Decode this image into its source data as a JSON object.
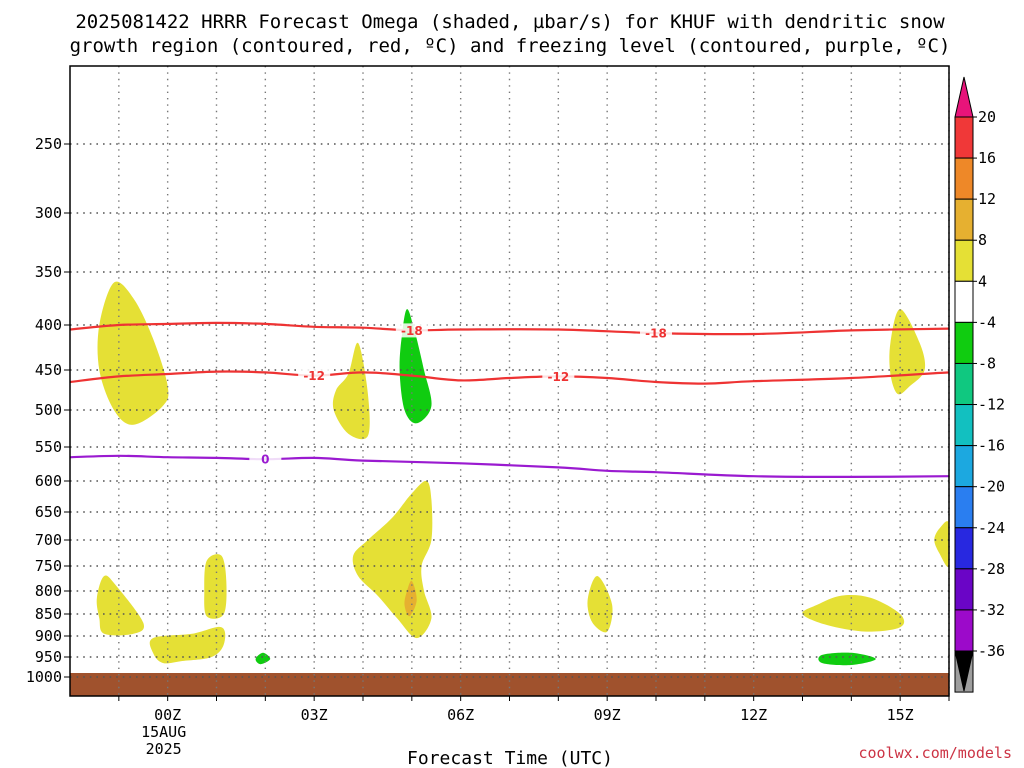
{
  "title_line1": "2025081422 HRRR Forecast Omega (shaded, µbar/s) for KHUF with dendritic snow",
  "title_line2": "growth region (contoured, red, ºC) and freezing level (contoured, purple, ºC)",
  "xlabel": "Forecast Time (UTC)",
  "credit": "coolwx.com/models",
  "chart_data": {
    "type": "contour",
    "title": "2025081422 HRRR Forecast Omega (shaded, µbar/s) for KHUF with dendritic snow growth region (contoured, red, ºC) and freezing level (contoured, purple, ºC)",
    "xlabel": "Forecast Time (UTC)",
    "ylabel": "",
    "x_range_hours": [
      -2.0,
      16.0
    ],
    "y_range_hpa": [
      200,
      1030
    ],
    "y_axis": "pressure (inverted, log-like spacing)",
    "grid": true,
    "x_ticks": [
      {
        "hour": 0,
        "label": "00Z",
        "sub1": "15AUG",
        "sub2": "2025"
      },
      {
        "hour": 3,
        "label": "03Z"
      },
      {
        "hour": 6,
        "label": "06Z"
      },
      {
        "hour": 9,
        "label": "09Z"
      },
      {
        "hour": 12,
        "label": "12Z"
      },
      {
        "hour": 15,
        "label": "15Z"
      }
    ],
    "y_ticks": [
      250,
      300,
      350,
      400,
      450,
      500,
      550,
      600,
      650,
      700,
      750,
      800,
      850,
      900,
      950,
      1000
    ],
    "surface_pressure_hpa": 990,
    "colorbar": {
      "levels": [
        -36,
        -32,
        -28,
        -24,
        -20,
        -16,
        -12,
        -8,
        -4,
        4,
        8,
        12,
        16,
        20
      ],
      "colors": [
        "#9e9e9e",
        "#9c0aca",
        "#6a05c6",
        "#2828e0",
        "#2a7ef0",
        "#1ca8e0",
        "#12c0c0",
        "#10c880",
        "#10cc10",
        "#ffffff",
        "#e5e035",
        "#e6b030",
        "#ee8828",
        "#f03838"
      ],
      "over_color": "#e8147a",
      "under_color": "#000000"
    },
    "contours": [
      {
        "variable": "temperature",
        "value": -18,
        "label": "-18",
        "color": "#ee3333",
        "points": [
          [
            -2,
            405
          ],
          [
            -1,
            400
          ],
          [
            0,
            399
          ],
          [
            1,
            398
          ],
          [
            2,
            399
          ],
          [
            3,
            402
          ],
          [
            4,
            403
          ],
          [
            5,
            406
          ],
          [
            6,
            405
          ],
          [
            8,
            405
          ],
          [
            10,
            409
          ],
          [
            12,
            410
          ],
          [
            14,
            406
          ],
          [
            16,
            404
          ]
        ]
      },
      {
        "variable": "temperature",
        "value": -12,
        "label": "-12",
        "color": "#ee3333",
        "points": [
          [
            -2,
            465
          ],
          [
            -1,
            458
          ],
          [
            0,
            455
          ],
          [
            1,
            452
          ],
          [
            2,
            453
          ],
          [
            3,
            457
          ],
          [
            4,
            453
          ],
          [
            5,
            457
          ],
          [
            6,
            463
          ],
          [
            7,
            460
          ],
          [
            8,
            458
          ],
          [
            9,
            460
          ],
          [
            10,
            465
          ],
          [
            11,
            467
          ],
          [
            12,
            464
          ],
          [
            14,
            460
          ],
          [
            16,
            453
          ]
        ]
      },
      {
        "variable": "freezing level",
        "value": 0,
        "label": "0",
        "color": "#9a1ad0",
        "points": [
          [
            -2,
            565
          ],
          [
            -1,
            563
          ],
          [
            0,
            565
          ],
          [
            1,
            566
          ],
          [
            2,
            568
          ],
          [
            3,
            566
          ],
          [
            4,
            570
          ],
          [
            6,
            574
          ],
          [
            8,
            580
          ],
          [
            9,
            585
          ],
          [
            10,
            587
          ],
          [
            12,
            593
          ],
          [
            14,
            594
          ],
          [
            16,
            593
          ]
        ]
      }
    ],
    "omega_regions": [
      {
        "level": "4 to 8",
        "color": "#e5e035",
        "points": [
          [
            -1.1,
            360
          ],
          [
            -0.7,
            375
          ],
          [
            -0.3,
            415
          ],
          [
            0,
            470
          ],
          [
            -0.1,
            495
          ],
          [
            -0.7,
            520
          ],
          [
            -1.1,
            500
          ],
          [
            -1.4,
            450
          ],
          [
            -1.4,
            400
          ]
        ]
      },
      {
        "level": "4 to 8",
        "color": "#e5e035",
        "points": [
          [
            3.9,
            420
          ],
          [
            4.1,
            480
          ],
          [
            4.1,
            535
          ],
          [
            3.7,
            532
          ],
          [
            3.4,
            500
          ],
          [
            3.45,
            475
          ],
          [
            3.7,
            455
          ]
        ]
      },
      {
        "level": "-8 to -4",
        "color": "#10cc10",
        "points": [
          [
            4.9,
            385
          ],
          [
            5.05,
            405
          ],
          [
            5.25,
            450
          ],
          [
            5.4,
            495
          ],
          [
            5.1,
            518
          ],
          [
            4.85,
            500
          ],
          [
            4.75,
            450
          ],
          [
            4.8,
            410
          ]
        ]
      },
      {
        "level": "4 to 8",
        "color": "#e5e035",
        "points": [
          [
            15.0,
            385
          ],
          [
            15.4,
            420
          ],
          [
            15.5,
            450
          ],
          [
            15.2,
            470
          ],
          [
            14.95,
            480
          ],
          [
            14.8,
            455
          ],
          [
            14.8,
            420
          ]
        ]
      },
      {
        "level": "4 to 8",
        "color": "#e5e035",
        "points": [
          [
            5.3,
            600
          ],
          [
            5.4,
            630
          ],
          [
            5.4,
            700
          ],
          [
            5.2,
            750
          ],
          [
            5.25,
            800
          ],
          [
            5.4,
            860
          ],
          [
            5.1,
            905
          ],
          [
            4.7,
            860
          ],
          [
            4.3,
            810
          ],
          [
            3.9,
            770
          ],
          [
            3.8,
            730
          ],
          [
            4.1,
            700
          ],
          [
            4.6,
            660
          ],
          [
            5.0,
            620
          ]
        ]
      },
      {
        "level": "8 to 12",
        "color": "#e6b030",
        "points": [
          [
            5.0,
            780
          ],
          [
            5.1,
            820
          ],
          [
            4.95,
            855
          ],
          [
            4.85,
            830
          ],
          [
            4.9,
            800
          ]
        ]
      },
      {
        "level": "4 to 8",
        "color": "#e5e035",
        "points": [
          [
            -1.3,
            770
          ],
          [
            -1.05,
            790
          ],
          [
            -0.5,
            870
          ],
          [
            -0.7,
            895
          ],
          [
            -1.3,
            895
          ],
          [
            -1.4,
            860
          ],
          [
            -1.45,
            815
          ]
        ]
      },
      {
        "level": "4 to 8",
        "color": "#e5e035",
        "points": [
          [
            1.1,
            730
          ],
          [
            1.2,
            780
          ],
          [
            1.15,
            850
          ],
          [
            0.8,
            855
          ],
          [
            0.75,
            800
          ],
          [
            0.8,
            740
          ]
        ]
      },
      {
        "level": "4 to 8",
        "color": "#e5e035",
        "points": [
          [
            -0.3,
            905
          ],
          [
            0.5,
            895
          ],
          [
            1.1,
            880
          ],
          [
            1.15,
            920
          ],
          [
            0.9,
            950
          ],
          [
            0.3,
            960
          ],
          [
            -0.1,
            965
          ],
          [
            -0.3,
            940
          ]
        ]
      },
      {
        "level": "-8 to -4",
        "color": "#10cc10",
        "points": [
          [
            1.95,
            940
          ],
          [
            2.1,
            955
          ],
          [
            1.9,
            968
          ],
          [
            1.8,
            955
          ]
        ]
      },
      {
        "level": "4 to 8",
        "color": "#e5e035",
        "points": [
          [
            8.8,
            770
          ],
          [
            9.1,
            830
          ],
          [
            9.0,
            890
          ],
          [
            8.7,
            870
          ],
          [
            8.6,
            820
          ]
        ]
      },
      {
        "level": "4 to 8",
        "color": "#e5e035",
        "points": [
          [
            13.3,
            830
          ],
          [
            13.8,
            810
          ],
          [
            14.4,
            815
          ],
          [
            15.0,
            850
          ],
          [
            15.0,
            880
          ],
          [
            14.3,
            890
          ],
          [
            13.5,
            875
          ],
          [
            13.0,
            850
          ]
        ]
      },
      {
        "level": "4 to 8",
        "color": "#e5e035",
        "points": [
          [
            15.8,
            680
          ],
          [
            16.0,
            670
          ],
          [
            16.0,
            750
          ],
          [
            15.8,
            725
          ],
          [
            15.7,
            700
          ]
        ]
      },
      {
        "level": "-8 to -4",
        "color": "#10cc10",
        "points": [
          [
            13.4,
            945
          ],
          [
            14.0,
            940
          ],
          [
            14.5,
            955
          ],
          [
            14.0,
            970
          ],
          [
            13.4,
            965
          ]
        ]
      }
    ]
  }
}
